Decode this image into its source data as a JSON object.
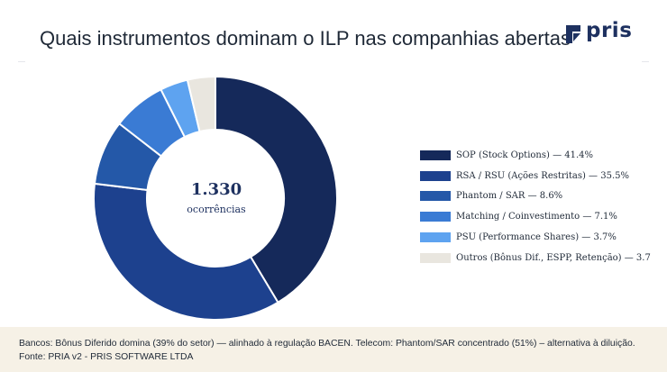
{
  "title": "Quais instrumentos dominam o ILP nas companhias abertas",
  "brand": {
    "name": "pris",
    "color": "#1e3160"
  },
  "center": {
    "value": "1.330",
    "label": "ocorrências"
  },
  "chart_data": {
    "type": "pie",
    "variant": "donut",
    "categories": [
      "SOP (Stock Options)",
      "RSA / RSU (Ações Restritas)",
      "Phantom / SAR",
      "Matching / Coinvestimento",
      "PSU (Performance Shares)",
      "Outros (Bônus Dif., ESPP, Retenção)"
    ],
    "values": [
      41.4,
      35.5,
      8.6,
      7.1,
      3.7,
      3.7
    ],
    "colors": [
      "#15295a",
      "#1d418e",
      "#2458a8",
      "#3a7bd4",
      "#5ea3f0",
      "#e9e6df"
    ],
    "total_occurrences": "1.330",
    "legend_position": "right"
  },
  "legend": [
    {
      "text": "SOP (Stock Options) — 41.4%",
      "color": "#15295a"
    },
    {
      "text": "RSA / RSU (Ações Restritas) — 35.5%",
      "color": "#1d418e"
    },
    {
      "text": "Phantom / SAR — 8.6%",
      "color": "#2458a8"
    },
    {
      "text": "Matching / Coinvestimento — 7.1%",
      "color": "#3a7bd4"
    },
    {
      "text": "PSU (Performance Shares) — 3.7%",
      "color": "#5ea3f0"
    },
    {
      "text": "Outros (Bônus Dif., ESPP, Retenção) — 3.7",
      "color": "#e9e6df"
    }
  ],
  "footer": {
    "note": "Bancos: Bônus Diferido domina (39% do setor) — alinhado à regulação BACEN. Telecom: Phantom/SAR concentrado (51%) – alternativa à diluição.",
    "source": "Fonte: PRIA v2 - PRIS SOFTWARE LTDA"
  }
}
